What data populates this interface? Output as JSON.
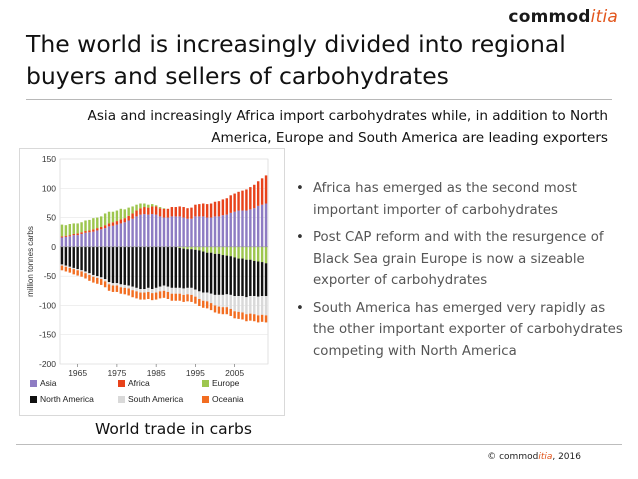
{
  "logo": {
    "prefix": "commod",
    "accent": "itia"
  },
  "title": "The world is increasingly divided into regional buyers and sellers of carbohydrates",
  "subtitle": "Asia and increasingly Africa import  carbohydrates while, in addition to North America, Europe and South America are leading exporters",
  "bullets": [
    "Africa has emerged as the second most important importer of carbohydrates",
    "Post CAP reform and with the resurgence of Black Sea grain Europe is now a sizeable exporter of carbohydrates",
    "South America has emerged very rapidly as the other important exporter of carbohydrates competing with North America"
  ],
  "caption": "World trade in carbs",
  "footer": {
    "copyright": "©",
    "prefix": "commod",
    "accent": "itia",
    "year": ", 2016"
  },
  "colors": {
    "Asia": "#8e7cc3",
    "Africa": "#e8421b",
    "Europe": "#9dc64e",
    "North America": "#111111",
    "South America": "#d9d9d9",
    "Oceania": "#f26d21"
  },
  "chart_data": {
    "type": "bar",
    "stacked": true,
    "ylabel": "million tonnes carbs",
    "ylim": [
      -200,
      150
    ],
    "yticks": [
      150,
      100,
      50,
      0,
      -50,
      -100,
      -150,
      -200
    ],
    "xticks": [
      1965,
      1975,
      1985,
      1995,
      2005
    ],
    "x": [
      1961,
      1962,
      1963,
      1964,
      1965,
      1966,
      1967,
      1968,
      1969,
      1970,
      1971,
      1972,
      1973,
      1974,
      1975,
      1976,
      1977,
      1978,
      1979,
      1980,
      1981,
      1982,
      1983,
      1984,
      1985,
      1986,
      1987,
      1988,
      1989,
      1990,
      1991,
      1992,
      1993,
      1994,
      1995,
      1996,
      1997,
      1998,
      1999,
      2000,
      2001,
      2002,
      2003,
      2004,
      2005,
      2006,
      2007,
      2008,
      2009,
      2010,
      2011,
      2012,
      2013
    ],
    "legend": {
      "placement": "bottom",
      "entries": [
        "Asia",
        "Africa",
        "Europe",
        "North America",
        "South America",
        "Oceania"
      ]
    },
    "series": [
      {
        "name": "Asia",
        "values": [
          16,
          17,
          18,
          20,
          20,
          22,
          24,
          25,
          26,
          28,
          30,
          32,
          35,
          36,
          38,
          40,
          42,
          45,
          48,
          52,
          55,
          56,
          55,
          56,
          55,
          52,
          50,
          50,
          52,
          52,
          52,
          50,
          48,
          48,
          52,
          52,
          52,
          50,
          50,
          52,
          52,
          54,
          55,
          58,
          60,
          62,
          62,
          62,
          64,
          66,
          70,
          72,
          74
        ]
      },
      {
        "name": "Africa",
        "values": [
          2,
          2,
          2,
          2,
          3,
          3,
          3,
          3,
          4,
          4,
          4,
          5,
          5,
          6,
          6,
          7,
          7,
          8,
          9,
          10,
          11,
          12,
          12,
          13,
          14,
          14,
          15,
          15,
          16,
          16,
          17,
          18,
          18,
          19,
          20,
          21,
          22,
          23,
          24,
          25,
          26,
          27,
          28,
          30,
          31,
          32,
          34,
          36,
          38,
          40,
          42,
          45,
          48
        ]
      },
      {
        "name": "Europe",
        "values": [
          20,
          18,
          19,
          18,
          17,
          17,
          18,
          18,
          19,
          18,
          18,
          20,
          20,
          18,
          18,
          18,
          15,
          14,
          12,
          10,
          8,
          6,
          5,
          4,
          2,
          2,
          1,
          0,
          0,
          0,
          -2,
          -3,
          -4,
          -4,
          -5,
          -6,
          -8,
          -10,
          -10,
          -12,
          -12,
          -14,
          -15,
          -16,
          -18,
          -20,
          -20,
          -22,
          -22,
          -24,
          -25,
          -26,
          -28
        ]
      },
      {
        "name": "North America",
        "values": [
          -30,
          -32,
          -34,
          -36,
          -38,
          -40,
          -42,
          -45,
          -48,
          -50,
          -52,
          -55,
          -60,
          -62,
          -62,
          -64,
          -65,
          -66,
          -68,
          -70,
          -72,
          -72,
          -70,
          -72,
          -70,
          -68,
          -66,
          -68,
          -70,
          -70,
          -68,
          -68,
          -66,
          -66,
          -68,
          -70,
          -70,
          -68,
          -70,
          -70,
          -70,
          -68,
          -66,
          -66,
          -66,
          -64,
          -64,
          -64,
          -62,
          -60,
          -60,
          -58,
          -56
        ]
      },
      {
        "name": "South America",
        "values": [
          -2,
          -2,
          -2,
          -2,
          -2,
          -2,
          -3,
          -3,
          -3,
          -3,
          -3,
          -4,
          -4,
          -4,
          -4,
          -5,
          -5,
          -5,
          -6,
          -6,
          -6,
          -6,
          -7,
          -7,
          -8,
          -8,
          -9,
          -9,
          -10,
          -10,
          -10,
          -11,
          -11,
          -12,
          -12,
          -13,
          -14,
          -15,
          -16,
          -18,
          -20,
          -21,
          -22,
          -24,
          -26,
          -27,
          -28,
          -29,
          -30,
          -31,
          -32,
          -32,
          -33
        ]
      },
      {
        "name": "Oceania",
        "values": [
          -8,
          -8,
          -8,
          -9,
          -9,
          -9,
          -9,
          -10,
          -10,
          -10,
          -10,
          -10,
          -11,
          -11,
          -11,
          -11,
          -11,
          -12,
          -12,
          -12,
          -12,
          -12,
          -12,
          -12,
          -12,
          -12,
          -12,
          -12,
          -12,
          -12,
          -12,
          -12,
          -12,
          -12,
          -12,
          -12,
          -12,
          -12,
          -12,
          -12,
          -12,
          -12,
          -12,
          -12,
          -12,
          -12,
          -12,
          -12,
          -12,
          -12,
          -12,
          -12,
          -12
        ]
      }
    ]
  }
}
